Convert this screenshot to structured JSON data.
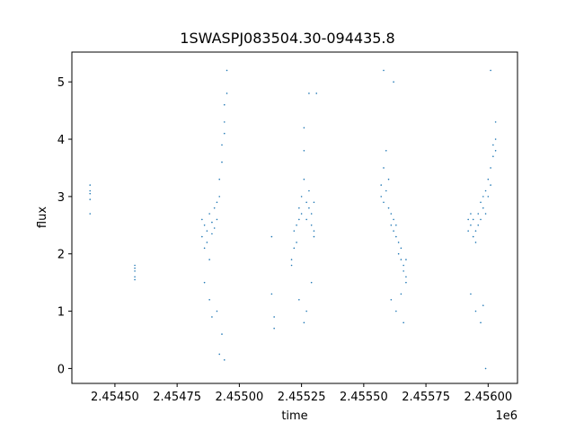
{
  "chart_data": {
    "type": "scatter",
    "title": "1SWASPJ083504.30-094435.8",
    "xlabel": "time",
    "ylabel": "flux",
    "x_offset_label": "1e6",
    "xlim": [
      2.454327,
      2.456118
    ],
    "ylim": [
      -0.26,
      5.52
    ],
    "x_ticks": [
      {
        "value": 2.4545,
        "label": "2.45450"
      },
      {
        "value": 2.45475,
        "label": "2.45475"
      },
      {
        "value": 2.455,
        "label": "2.45500"
      },
      {
        "value": 2.45525,
        "label": "2.45525"
      },
      {
        "value": 2.4555,
        "label": "2.45550"
      },
      {
        "value": 2.45575,
        "label": "2.45575"
      },
      {
        "value": 2.456,
        "label": "2.45600"
      }
    ],
    "y_ticks": [
      {
        "value": 0,
        "label": "0"
      },
      {
        "value": 1,
        "label": "1"
      },
      {
        "value": 2,
        "label": "2"
      },
      {
        "value": 3,
        "label": "3"
      },
      {
        "value": 4,
        "label": "4"
      },
      {
        "value": 5,
        "label": "5"
      }
    ],
    "grid": false,
    "marker_color": "#1f77b4",
    "series": [
      {
        "values": [
          [
            2.4544,
            3.05
          ],
          [
            2.4544,
            3.1
          ],
          [
            2.4544,
            2.95
          ],
          [
            2.4544,
            3.2
          ],
          [
            2.4544,
            2.7
          ],
          [
            2.45458,
            1.75
          ],
          [
            2.45458,
            1.6
          ],
          [
            2.45458,
            1.8
          ],
          [
            2.45458,
            1.55
          ],
          [
            2.45458,
            1.7
          ],
          [
            2.45485,
            2.3
          ],
          [
            2.45485,
            2.6
          ],
          [
            2.45486,
            2.1
          ],
          [
            2.45486,
            2.5
          ],
          [
            2.45487,
            2.4
          ],
          [
            2.45487,
            2.2
          ],
          [
            2.45488,
            2.7
          ],
          [
            2.45488,
            1.9
          ],
          [
            2.45489,
            2.35
          ],
          [
            2.45489,
            2.55
          ],
          [
            2.4549,
            2.45
          ],
          [
            2.4549,
            2.8
          ],
          [
            2.45491,
            2.9
          ],
          [
            2.45491,
            2.6
          ],
          [
            2.45492,
            3.0
          ],
          [
            2.45492,
            3.3
          ],
          [
            2.45493,
            3.6
          ],
          [
            2.45493,
            3.9
          ],
          [
            2.45494,
            4.1
          ],
          [
            2.45494,
            4.3
          ],
          [
            2.45494,
            4.6
          ],
          [
            2.45495,
            4.8
          ],
          [
            2.45495,
            5.2
          ],
          [
            2.45492,
            0.25
          ],
          [
            2.45494,
            0.15
          ],
          [
            2.45488,
            1.2
          ],
          [
            2.45491,
            1.0
          ],
          [
            2.45493,
            0.6
          ],
          [
            2.45486,
            1.5
          ],
          [
            2.45489,
            0.9
          ],
          [
            2.45513,
            2.3
          ],
          [
            2.45513,
            1.3
          ],
          [
            2.45514,
            0.7
          ],
          [
            2.45514,
            0.9
          ],
          [
            2.45521,
            1.8
          ],
          [
            2.45521,
            1.9
          ],
          [
            2.45522,
            2.1
          ],
          [
            2.45522,
            2.4
          ],
          [
            2.45523,
            2.5
          ],
          [
            2.45523,
            2.2
          ],
          [
            2.45524,
            2.6
          ],
          [
            2.45524,
            2.8
          ],
          [
            2.45525,
            3.0
          ],
          [
            2.45525,
            2.7
          ],
          [
            2.45526,
            3.3
          ],
          [
            2.45526,
            3.8
          ],
          [
            2.45526,
            4.2
          ],
          [
            2.45527,
            2.9
          ],
          [
            2.45527,
            2.6
          ],
          [
            2.45528,
            2.8
          ],
          [
            2.45528,
            3.1
          ],
          [
            2.45529,
            2.7
          ],
          [
            2.45529,
            2.5
          ],
          [
            2.4553,
            2.4
          ],
          [
            2.4553,
            2.9
          ],
          [
            2.4553,
            2.3
          ],
          [
            2.45528,
            4.8
          ],
          [
            2.45531,
            4.8
          ],
          [
            2.45529,
            1.5
          ],
          [
            2.45524,
            1.2
          ],
          [
            2.45526,
            0.8
          ],
          [
            2.45527,
            1.0
          ],
          [
            2.45557,
            3.2
          ],
          [
            2.45557,
            3.0
          ],
          [
            2.45558,
            3.5
          ],
          [
            2.45558,
            2.9
          ],
          [
            2.45559,
            3.1
          ],
          [
            2.45559,
            3.8
          ],
          [
            2.4556,
            3.3
          ],
          [
            2.4556,
            2.8
          ],
          [
            2.45561,
            2.7
          ],
          [
            2.45561,
            2.5
          ],
          [
            2.45562,
            2.6
          ],
          [
            2.45562,
            2.4
          ],
          [
            2.45563,
            2.3
          ],
          [
            2.45563,
            2.5
          ],
          [
            2.45564,
            2.2
          ],
          [
            2.45564,
            2.0
          ],
          [
            2.45565,
            1.9
          ],
          [
            2.45565,
            2.1
          ],
          [
            2.45566,
            1.8
          ],
          [
            2.45566,
            1.7
          ],
          [
            2.45567,
            1.6
          ],
          [
            2.45567,
            1.9
          ],
          [
            2.45567,
            1.5
          ],
          [
            2.45558,
            5.2
          ],
          [
            2.45562,
            5.0
          ],
          [
            2.45561,
            1.2
          ],
          [
            2.45563,
            1.0
          ],
          [
            2.45565,
            1.3
          ],
          [
            2.45566,
            0.8
          ],
          [
            2.45592,
            2.6
          ],
          [
            2.45592,
            2.4
          ],
          [
            2.45593,
            2.5
          ],
          [
            2.45593,
            2.7
          ],
          [
            2.45594,
            2.3
          ],
          [
            2.45594,
            2.6
          ],
          [
            2.45595,
            2.2
          ],
          [
            2.45595,
            2.4
          ],
          [
            2.45596,
            2.5
          ],
          [
            2.45596,
            2.7
          ],
          [
            2.45597,
            2.6
          ],
          [
            2.45597,
            2.9
          ],
          [
            2.45598,
            2.8
          ],
          [
            2.45598,
            3.0
          ],
          [
            2.45599,
            2.7
          ],
          [
            2.45599,
            3.1
          ],
          [
            2.456,
            3.0
          ],
          [
            2.456,
            3.3
          ],
          [
            2.45601,
            3.5
          ],
          [
            2.45601,
            3.2
          ],
          [
            2.45602,
            3.7
          ],
          [
            2.45602,
            3.9
          ],
          [
            2.45603,
            4.0
          ],
          [
            2.45603,
            4.3
          ],
          [
            2.45603,
            3.8
          ],
          [
            2.45601,
            5.2
          ],
          [
            2.45593,
            1.3
          ],
          [
            2.45595,
            1.0
          ],
          [
            2.45597,
            0.8
          ],
          [
            2.45599,
            0.0
          ],
          [
            2.45598,
            1.1
          ]
        ]
      }
    ]
  }
}
